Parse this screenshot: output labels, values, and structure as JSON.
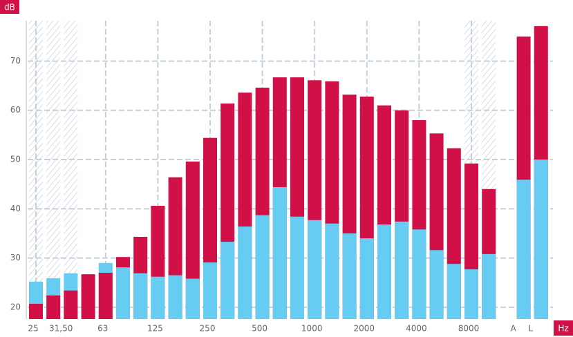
{
  "chart_data": {
    "type": "bar",
    "y_label": "dB",
    "x_label": "Hz",
    "categories": [
      "25",
      "31,50",
      null,
      null,
      "63",
      null,
      null,
      "125",
      null,
      null,
      "250",
      null,
      null,
      "500",
      null,
      null,
      "1000",
      null,
      null,
      "2000",
      null,
      null,
      "4000",
      null,
      null,
      "8000",
      null,
      "A",
      "L"
    ],
    "series": [
      {
        "color": "#d21048",
        "values": [
          20.7,
          22.4,
          23.4,
          26.7,
          27.0,
          30.2,
          34.3,
          40.6,
          46.4,
          49.6,
          54.4,
          61.4,
          63.6,
          64.6,
          66.7,
          66.7,
          66.1,
          65.9,
          63.2,
          62.8,
          61.0,
          60.0,
          58.0,
          55.3,
          52.3,
          49.2,
          44.0,
          75.0,
          77.1
        ]
      },
      {
        "color": "#66ccf2",
        "values": [
          25.2,
          25.9,
          26.9,
          null,
          29.0,
          28.1,
          26.9,
          26.2,
          26.5,
          25.8,
          29.1,
          33.3,
          36.4,
          38.7,
          44.4,
          38.4,
          37.7,
          37.0,
          35.0,
          34.0,
          36.8,
          37.4,
          35.8,
          31.6,
          28.8,
          27.7,
          30.8,
          45.9,
          50.0
        ]
      }
    ],
    "ylim": [
      17.6,
      78.2
    ],
    "yticks": [
      20,
      30,
      40,
      50,
      60,
      70
    ],
    "grid": true
  }
}
